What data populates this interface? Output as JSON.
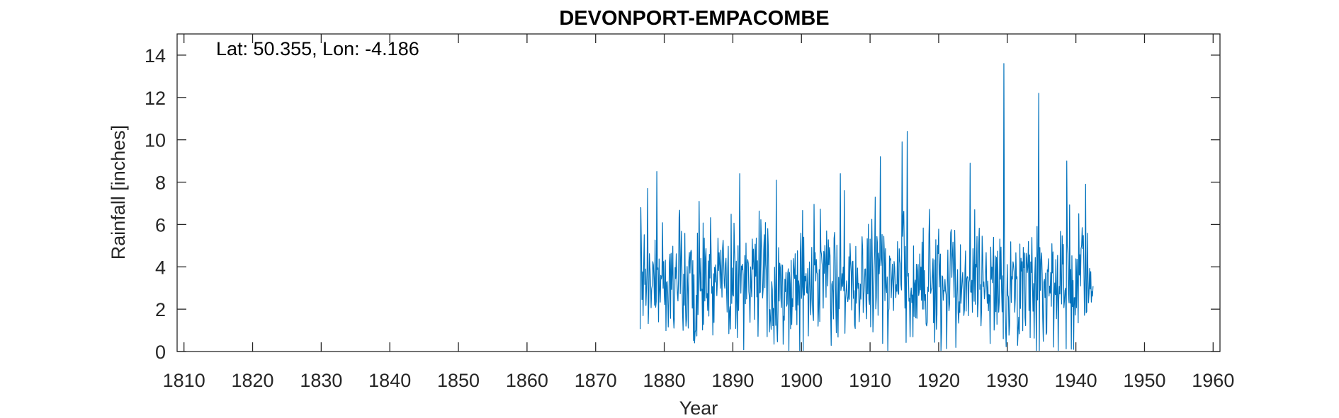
{
  "chart_data": {
    "type": "line",
    "title": "DEVONPORT-EMPACOMBE",
    "annotation": "Lat: 50.355, Lon: -4.186",
    "xlabel": "Year",
    "ylabel": "Rainfall [inches]",
    "xlim": [
      1809,
      1961
    ],
    "ylim": [
      0,
      15
    ],
    "xticks": [
      1810,
      1820,
      1830,
      1840,
      1850,
      1860,
      1870,
      1880,
      1890,
      1900,
      1910,
      1920,
      1930,
      1940,
      1950,
      1960
    ],
    "yticks": [
      0,
      2,
      4,
      6,
      8,
      10,
      12,
      14
    ],
    "grid": false,
    "data_start": 1876.5,
    "data_end": 1942.5,
    "peaks": [
      {
        "x": 1876.6,
        "y": 6.8
      },
      {
        "x": 1877.6,
        "y": 7.7
      },
      {
        "x": 1878.9,
        "y": 8.5
      },
      {
        "x": 1891.0,
        "y": 8.4
      },
      {
        "x": 1896.3,
        "y": 8.1
      },
      {
        "x": 1905.7,
        "y": 8.4
      },
      {
        "x": 1911.5,
        "y": 9.2
      },
      {
        "x": 1914.7,
        "y": 9.9
      },
      {
        "x": 1915.4,
        "y": 10.4
      },
      {
        "x": 1924.6,
        "y": 8.9
      },
      {
        "x": 1929.5,
        "y": 13.6
      },
      {
        "x": 1934.6,
        "y": 12.2
      },
      {
        "x": 1938.7,
        "y": 9.0
      },
      {
        "x": 1941.4,
        "y": 7.9
      }
    ],
    "series": [
      {
        "color": "#0072BD"
      }
    ]
  }
}
